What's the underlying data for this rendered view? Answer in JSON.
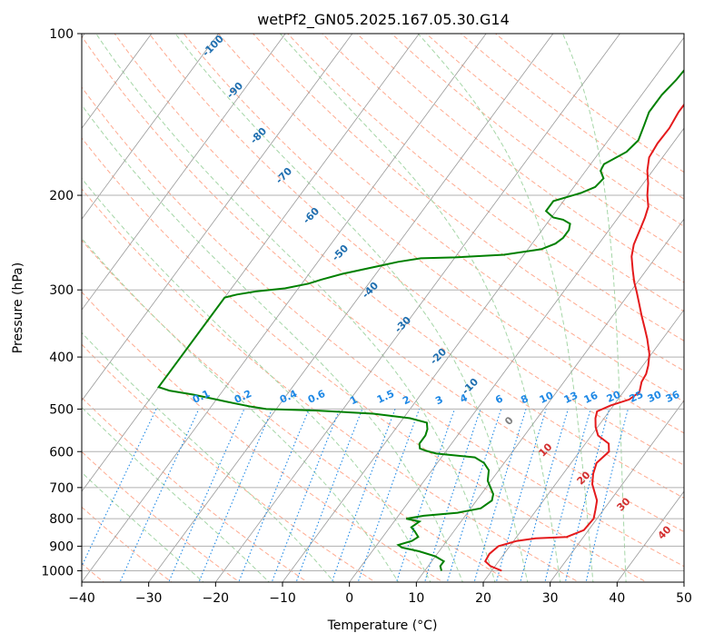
{
  "chart_data": {
    "type": "line",
    "title": "wetPf2_GN05.2025.167.05.30.G14",
    "xlabel": "Temperature (°C)",
    "ylabel": "Pressure (hPa)",
    "xlim": [
      -40,
      50
    ],
    "ylim": [
      1050,
      100
    ],
    "y_scale": "log",
    "x_ticks": [
      -40,
      -30,
      -20,
      -10,
      0,
      10,
      20,
      30,
      40,
      50
    ],
    "y_ticks": [
      100,
      200,
      300,
      400,
      500,
      600,
      700,
      800,
      900,
      1000
    ],
    "grid": true,
    "colors": {
      "temperature": "#e41a1c",
      "dewpoint": "#008000",
      "isotherm": "#999999",
      "dry_adiabat": "#ffab91",
      "moist_adiabat": "#a5d6a7",
      "mixing_ratio": "#1e88e5",
      "dry_label": "#d32f2f",
      "wet_label": "#1f6fb0",
      "mix_label": "#1e88e5",
      "zero_label": "#808080"
    },
    "series": [
      {
        "key": "temperature",
        "points": [
          [
            21.5,
            1000
          ],
          [
            19.3,
            980
          ],
          [
            18.0,
            960
          ],
          [
            17.8,
            930
          ],
          [
            18.3,
            900
          ],
          [
            20.5,
            880
          ],
          [
            23.0,
            870
          ],
          [
            27.5,
            865
          ],
          [
            29.3,
            840
          ],
          [
            29.5,
            800
          ],
          [
            28.8,
            770
          ],
          [
            28.0,
            740
          ],
          [
            25.5,
            690
          ],
          [
            24.5,
            660
          ],
          [
            23.8,
            630
          ],
          [
            24.4,
            600
          ],
          [
            23.5,
            580
          ],
          [
            21.0,
            560
          ],
          [
            19.7,
            540
          ],
          [
            18.7,
            520
          ],
          [
            18.2,
            505
          ],
          [
            19.6,
            492
          ],
          [
            21.7,
            480
          ],
          [
            22.4,
            465
          ],
          [
            21.6,
            445
          ],
          [
            21.4,
            430
          ],
          [
            20.8,
            415
          ],
          [
            19.7,
            395
          ],
          [
            17.7,
            370
          ],
          [
            16.3,
            355
          ],
          [
            14.3,
            335
          ],
          [
            12.6,
            318
          ],
          [
            11.0,
            303
          ],
          [
            9.5,
            290
          ],
          [
            8.0,
            276
          ],
          [
            6.3,
            260
          ],
          [
            5.3,
            247
          ],
          [
            4.7,
            234
          ],
          [
            4.0,
            220
          ],
          [
            3.3,
            210
          ],
          [
            1.9,
            200
          ],
          [
            0.7,
            190
          ],
          [
            -0.8,
            180
          ],
          [
            -2.0,
            170
          ],
          [
            -2.3,
            160
          ],
          [
            -2.2,
            150
          ],
          [
            -2.6,
            140
          ],
          [
            -2.6,
            130
          ],
          [
            -2.4,
            120
          ],
          [
            -2.1,
            115
          ],
          [
            -1.4,
            111
          ],
          [
            -0.4,
            108
          ],
          [
            0.4,
            104
          ],
          [
            1.2,
            100
          ]
        ]
      },
      {
        "key": "dewpoint",
        "points": [
          [
            12.5,
            1000
          ],
          [
            11.8,
            980
          ],
          [
            11.8,
            960
          ],
          [
            10.0,
            940
          ],
          [
            7.0,
            920
          ],
          [
            4.0,
            905
          ],
          [
            3.2,
            895
          ],
          [
            4.8,
            880
          ],
          [
            5.3,
            865
          ],
          [
            4.2,
            845
          ],
          [
            3.2,
            830
          ],
          [
            3.8,
            810
          ],
          [
            1.5,
            800
          ],
          [
            3.8,
            790
          ],
          [
            8.5,
            780
          ],
          [
            11.5,
            765
          ],
          [
            12.3,
            740
          ],
          [
            11.8,
            720
          ],
          [
            9.5,
            680
          ],
          [
            8.5,
            650
          ],
          [
            7.0,
            630
          ],
          [
            5.0,
            615
          ],
          [
            -1.2,
            605
          ],
          [
            -3.0,
            598
          ],
          [
            -4.2,
            592
          ],
          [
            -4.8,
            580
          ],
          [
            -4.8,
            560
          ],
          [
            -5.2,
            545
          ],
          [
            -6.0,
            530
          ],
          [
            -9.0,
            520
          ],
          [
            -15.0,
            510
          ],
          [
            -24.0,
            503
          ],
          [
            -31.5,
            500
          ],
          [
            -34.0,
            495
          ],
          [
            -38.0,
            485
          ],
          [
            -40.0,
            480
          ],
          [
            -44.0,
            470
          ],
          [
            -48.0,
            462
          ],
          [
            -50.0,
            455
          ],
          [
            -50.0,
            310
          ],
          [
            -48.5,
            306
          ],
          [
            -46.0,
            302
          ],
          [
            -42.0,
            298
          ],
          [
            -39.0,
            292
          ],
          [
            -37.5,
            287
          ],
          [
            -35.0,
            280
          ],
          [
            -32.0,
            274
          ],
          [
            -30.0,
            270
          ],
          [
            -28.0,
            266
          ],
          [
            -25.0,
            262
          ],
          [
            -20.0,
            261
          ],
          [
            -13.0,
            258
          ],
          [
            -8.0,
            252
          ],
          [
            -6.5,
            246
          ],
          [
            -6.0,
            240
          ],
          [
            -6.0,
            232
          ],
          [
            -6.5,
            226
          ],
          [
            -8.0,
            222
          ],
          [
            -9.7,
            220
          ],
          [
            -11.5,
            214
          ],
          [
            -11.5,
            205
          ],
          [
            -8.3,
            198
          ],
          [
            -6.8,
            193
          ],
          [
            -6.5,
            186
          ],
          [
            -7.8,
            180
          ],
          [
            -8.0,
            175
          ],
          [
            -6.0,
            166
          ],
          [
            -5.5,
            158
          ],
          [
            -6.3,
            148
          ],
          [
            -7.0,
            140
          ],
          [
            -7.0,
            130
          ],
          [
            -6.5,
            122
          ],
          [
            -6.3,
            115
          ],
          [
            -5.6,
            110
          ],
          [
            -3.8,
            105
          ],
          [
            -2.5,
            100
          ]
        ]
      }
    ],
    "isotherms": [
      -100,
      -90,
      -80,
      -70,
      -60,
      -50,
      -40,
      -30,
      -20,
      -10,
      0,
      10,
      20,
      30,
      40,
      50,
      60
    ],
    "dry_adiabats": [
      -40,
      -30,
      -20,
      -10,
      0,
      10,
      20,
      30,
      40,
      50,
      60,
      70,
      80,
      90,
      100,
      110,
      120,
      130,
      140,
      150,
      160,
      170,
      180
    ],
    "moist_adiabats": [
      -25,
      -15,
      -5,
      5,
      10,
      15,
      20,
      25,
      30,
      35,
      40
    ],
    "mixing_ratios": [
      0.1,
      0.2,
      0.4,
      0.6,
      1,
      1.5,
      2,
      3,
      4,
      6,
      8,
      10,
      13,
      16,
      20,
      25,
      30,
      36
    ],
    "annotations": {
      "wet_labels": [
        "-100",
        "-90",
        "-80",
        "-70",
        "-60",
        "-50",
        "-40",
        "-30",
        "-20",
        "-10"
      ],
      "zero_label": "0",
      "dry_labels": [
        "10",
        "20",
        "30",
        "40"
      ],
      "mix_labels": [
        "0.1",
        "0.2",
        "0.4",
        "0.6",
        "1",
        "1.5",
        "2",
        "3",
        "4",
        "6",
        "8",
        "10",
        "13",
        "16",
        "20",
        "25",
        "30",
        "36"
      ]
    }
  }
}
